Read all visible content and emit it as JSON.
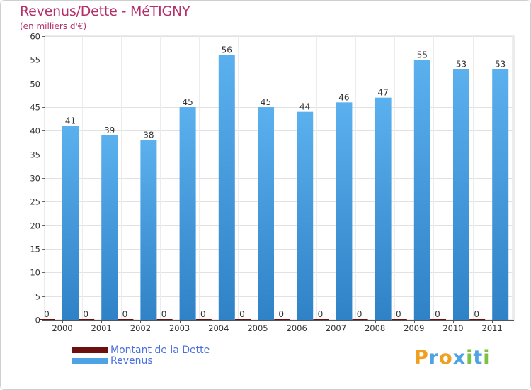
{
  "chart_data": {
    "type": "bar",
    "title": "Revenus/Dette - MéTIGNY",
    "subtitle": "(en milliers d'€)",
    "categories": [
      "2000",
      "2001",
      "2002",
      "2003",
      "2004",
      "2005",
      "2006",
      "2007",
      "2008",
      "2009",
      "2010",
      "2011"
    ],
    "series": [
      {
        "name": "Montant de la Dette",
        "color": "#6b0f0f",
        "values": [
          0,
          0,
          0,
          0,
          0,
          0,
          0,
          0,
          0,
          0,
          0,
          0
        ]
      },
      {
        "name": "Revenus",
        "color": "#4ea3e4",
        "values": [
          41,
          39,
          38,
          45,
          56,
          45,
          44,
          46,
          47,
          55,
          53,
          53
        ]
      }
    ],
    "ylim": [
      0,
      60
    ],
    "yticks": [
      0,
      5,
      10,
      15,
      20,
      25,
      30,
      35,
      40,
      45,
      50,
      55,
      60
    ],
    "grid": true,
    "xlabel": "",
    "ylabel": ""
  },
  "legend": {
    "items": [
      {
        "label": "Montant de la Dette",
        "color": "#6b0f0f"
      },
      {
        "label": "Revenus",
        "color": "#4ea3e4"
      }
    ]
  },
  "logo": {
    "letters": [
      "P",
      "r",
      "o",
      "x",
      "i",
      "t",
      "i"
    ],
    "colors": [
      "#f0a020",
      "#4ea3e4",
      "#f0a020",
      "#4ea3e4",
      "#7cc242",
      "#4ea3e4",
      "#7cc242"
    ]
  }
}
